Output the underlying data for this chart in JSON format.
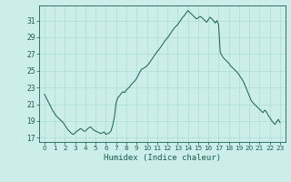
{
  "xlabel": "Humidex (Indice chaleur)",
  "background_color": "#cceee8",
  "grid_color": "#aaddcc",
  "line_color": "#1a5c52",
  "ylim": [
    16.5,
    32.8
  ],
  "xlim": [
    -0.5,
    23.5
  ],
  "yticks": [
    17,
    19,
    21,
    23,
    25,
    27,
    29,
    31
  ],
  "xticks": [
    0,
    1,
    2,
    3,
    4,
    5,
    6,
    7,
    8,
    9,
    10,
    11,
    12,
    13,
    14,
    15,
    16,
    17,
    18,
    19,
    20,
    21,
    22,
    23
  ],
  "hours": [
    0,
    0.167,
    0.333,
    0.5,
    0.667,
    0.833,
    1,
    1.167,
    1.333,
    1.5,
    1.667,
    1.833,
    2,
    2.167,
    2.333,
    2.5,
    2.667,
    2.833,
    3,
    3.167,
    3.333,
    3.5,
    3.667,
    3.833,
    4,
    4.167,
    4.333,
    4.5,
    4.667,
    4.833,
    5,
    5.167,
    5.333,
    5.5,
    5.667,
    5.833,
    6,
    6.167,
    6.333,
    6.5,
    6.667,
    6.833,
    7,
    7.167,
    7.333,
    7.5,
    7.667,
    7.833,
    8,
    8.167,
    8.333,
    8.5,
    8.667,
    8.833,
    9,
    9.167,
    9.333,
    9.5,
    9.667,
    9.833,
    10,
    10.167,
    10.333,
    10.5,
    10.667,
    10.833,
    11,
    11.167,
    11.333,
    11.5,
    11.667,
    11.833,
    12,
    12.167,
    12.333,
    12.5,
    12.667,
    12.833,
    13,
    13.167,
    13.333,
    13.5,
    13.667,
    13.833,
    14,
    14.167,
    14.333,
    14.5,
    14.667,
    14.833,
    15,
    15.167,
    15.333,
    15.5,
    15.667,
    15.833,
    16,
    16.167,
    16.333,
    16.5,
    16.667,
    16.833,
    17,
    17.167,
    17.333,
    17.5,
    17.667,
    17.833,
    18,
    18.167,
    18.333,
    18.5,
    18.667,
    18.833,
    19,
    19.167,
    19.333,
    19.5,
    19.667,
    19.833,
    20,
    20.167,
    20.333,
    20.5,
    20.667,
    20.833,
    21,
    21.167,
    21.333,
    21.5,
    21.667,
    21.833,
    22,
    22.167,
    22.333,
    22.5,
    22.667,
    22.833,
    23
  ],
  "values": [
    22.2,
    21.8,
    21.4,
    21.0,
    20.6,
    20.2,
    19.9,
    19.6,
    19.4,
    19.2,
    19.0,
    18.8,
    18.5,
    18.2,
    17.9,
    17.7,
    17.5,
    17.4,
    17.6,
    17.8,
    17.9,
    18.1,
    18.0,
    17.8,
    17.8,
    18.0,
    18.2,
    18.3,
    18.1,
    17.9,
    17.8,
    17.7,
    17.6,
    17.5,
    17.6,
    17.7,
    17.4,
    17.5,
    17.6,
    17.8,
    18.5,
    19.5,
    21.2,
    21.8,
    22.0,
    22.3,
    22.5,
    22.4,
    22.7,
    22.9,
    23.1,
    23.4,
    23.6,
    23.8,
    24.1,
    24.5,
    24.9,
    25.2,
    25.3,
    25.4,
    25.6,
    25.8,
    26.1,
    26.4,
    26.7,
    27.0,
    27.3,
    27.5,
    27.8,
    28.1,
    28.4,
    28.7,
    28.9,
    29.2,
    29.5,
    29.8,
    30.1,
    30.3,
    30.5,
    30.8,
    31.1,
    31.4,
    31.6,
    31.9,
    32.2,
    32.0,
    31.8,
    31.6,
    31.4,
    31.2,
    31.3,
    31.5,
    31.4,
    31.2,
    31.0,
    30.8,
    31.1,
    31.4,
    31.2,
    31.0,
    30.7,
    31.0,
    30.5,
    27.2,
    26.8,
    26.5,
    26.3,
    26.1,
    25.9,
    25.6,
    25.4,
    25.2,
    25.0,
    24.8,
    24.5,
    24.2,
    23.9,
    23.5,
    23.0,
    22.5,
    22.0,
    21.5,
    21.2,
    21.0,
    20.8,
    20.6,
    20.4,
    20.2,
    20.0,
    20.3,
    20.1,
    19.7,
    19.4,
    19.1,
    18.8,
    18.6,
    18.9,
    19.2,
    18.8
  ]
}
